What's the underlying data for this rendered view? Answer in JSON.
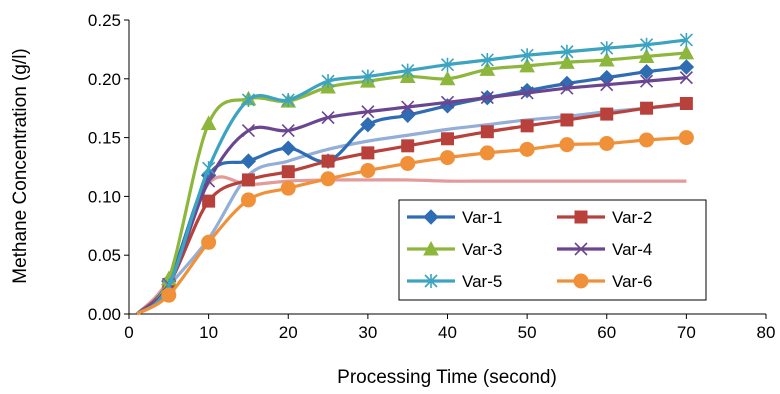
{
  "chart_data": {
    "type": "line",
    "title": "",
    "xlabel": "Processing Time (second)",
    "ylabel": "Methane Concentration (g/l)",
    "xlim": [
      0,
      80
    ],
    "ylim": [
      0,
      0.25
    ],
    "x_ticks": [
      "0",
      "10",
      "20",
      "30",
      "40",
      "50",
      "60",
      "70",
      "80"
    ],
    "y_ticks": [
      "0.00",
      "0.05",
      "0.10",
      "0.15",
      "0.20",
      "0.25"
    ],
    "grid": false,
    "legend_position": "bottom-right",
    "x": [
      5,
      10,
      15,
      20,
      25,
      30,
      35,
      40,
      45,
      50,
      55,
      60,
      65,
      70
    ],
    "series": [
      {
        "name": "Var-1",
        "color": "#2E6DB4",
        "marker": "diamond",
        "values": [
          0.028,
          0.118,
          0.13,
          0.141,
          0.13,
          0.161,
          0.169,
          0.177,
          0.184,
          0.19,
          0.196,
          0.201,
          0.206,
          0.21
        ]
      },
      {
        "name": "Var-2",
        "color": "#B8413B",
        "marker": "square",
        "values": [
          0.025,
          0.096,
          0.114,
          0.121,
          0.13,
          0.137,
          0.143,
          0.149,
          0.155,
          0.16,
          0.165,
          0.17,
          0.175,
          0.179
        ]
      },
      {
        "name": "Var-3",
        "color": "#8DB63D",
        "marker": "triangle",
        "values": [
          0.03,
          0.162,
          0.183,
          0.181,
          0.193,
          0.198,
          0.202,
          0.2,
          0.208,
          0.211,
          0.214,
          0.216,
          0.219,
          0.222
        ]
      },
      {
        "name": "Var-4",
        "color": "#6B4690",
        "marker": "x",
        "values": [
          0.025,
          0.113,
          0.156,
          0.156,
          0.167,
          0.172,
          0.176,
          0.18,
          0.184,
          0.188,
          0.192,
          0.195,
          0.198,
          0.201
        ]
      },
      {
        "name": "Var-5",
        "color": "#3CA3C0",
        "marker": "star",
        "values": [
          0.024,
          0.124,
          0.182,
          0.182,
          0.198,
          0.202,
          0.207,
          0.212,
          0.216,
          0.22,
          0.223,
          0.226,
          0.229,
          0.233
        ]
      },
      {
        "name": "Var-6",
        "color": "#F0913A",
        "marker": "circle",
        "values": [
          0.016,
          0.061,
          0.097,
          0.107,
          0.115,
          0.122,
          0.128,
          0.133,
          0.137,
          0.14,
          0.144,
          0.145,
          0.148,
          0.15
        ]
      }
    ],
    "unlabeled_series": [
      {
        "color": "#93AED8",
        "x": [
          5,
          10,
          15,
          20,
          25,
          30,
          35,
          40,
          45,
          50,
          55,
          60,
          65,
          70
        ],
        "values": [
          0.024,
          0.064,
          0.118,
          0.13,
          0.14,
          0.147,
          0.152,
          0.157,
          0.161,
          0.165,
          0.168,
          0.172,
          0.175,
          0.178
        ]
      },
      {
        "color": "#E39A9A",
        "x": [
          1,
          5,
          10,
          15,
          20,
          25,
          30,
          35,
          40,
          45,
          50,
          55,
          60,
          65,
          70
        ],
        "values": [
          0.0,
          0.03,
          0.111,
          0.11,
          0.113,
          0.114,
          0.114,
          0.114,
          0.113,
          0.113,
          0.113,
          0.113,
          0.113,
          0.113,
          0.113
        ]
      }
    ]
  }
}
